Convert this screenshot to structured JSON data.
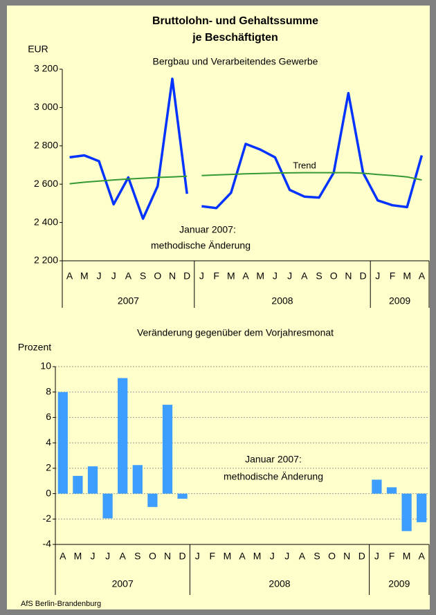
{
  "chart_data": [
    {
      "type": "line",
      "title": [
        "Bruttolohn- und Gehaltssumme",
        "je Beschäftigten"
      ],
      "subtitle": "Bergbau und Verarbeitendes Gewerbe",
      "y_label": "EUR",
      "annotations": [
        "Januar 2007:",
        "methodische Änderung",
        "Trend"
      ],
      "categories": [
        "A",
        "M",
        "J",
        "J",
        "A",
        "S",
        "O",
        "N",
        "D",
        "J",
        "F",
        "M",
        "A",
        "M",
        "J",
        "J",
        "A",
        "S",
        "O",
        "N",
        "D",
        "J",
        "F",
        "M",
        "A"
      ],
      "year_groups": [
        {
          "label": "2007",
          "months": 9
        },
        {
          "label": "2008",
          "months": 12
        },
        {
          "label": "2009",
          "months": 4
        }
      ],
      "series": [
        {
          "color": "#0033ff",
          "width": 3.5,
          "values": [
            2740,
            2750,
            2720,
            2495,
            2635,
            2420,
            2590,
            3150,
            2550,
            null,
            null,
            null,
            null,
            null,
            null,
            null,
            null,
            null,
            null,
            null,
            null,
            null,
            null,
            null,
            null
          ]
        },
        {
          "color": "#0033ff",
          "width": 3.5,
          "values": [
            null,
            null,
            null,
            null,
            null,
            null,
            null,
            null,
            null,
            2485,
            2475,
            2555,
            2810,
            2780,
            2740,
            2570,
            2535,
            2530,
            2660,
            3075,
            2660,
            2515,
            2490,
            2480,
            2750
          ]
        },
        {
          "color": "#339933",
          "width": 2,
          "values": [
            2602,
            2610,
            2616,
            2622,
            2627,
            2631,
            2635,
            2638,
            2641,
            null,
            null,
            null,
            null,
            null,
            null,
            null,
            null,
            null,
            null,
            null,
            null,
            null,
            null,
            null,
            null
          ]
        },
        {
          "color": "#339933",
          "width": 2,
          "values": [
            null,
            null,
            null,
            null,
            null,
            null,
            null,
            null,
            null,
            2645,
            2648,
            2651,
            2654,
            2656,
            2658,
            2659,
            2660,
            2660,
            2660,
            2660,
            2657,
            2650,
            2645,
            2638,
            2622
          ]
        }
      ],
      "ylim": [
        2200,
        3200
      ],
      "yticks": [
        {
          "value": 2200,
          "label": "2 200"
        },
        {
          "value": 2400,
          "label": "2 400"
        },
        {
          "value": 2600,
          "label": "2 600"
        },
        {
          "value": 2800,
          "label": "2 800"
        },
        {
          "value": 3000,
          "label": "3 000"
        },
        {
          "value": 3200,
          "label": "3 200"
        }
      ],
      "grid": false
    },
    {
      "type": "bar",
      "subtitle": "Veränderung gegenüber dem Vorjahresmonat",
      "y_label": "Prozent",
      "annotations": [
        "Januar 2007:",
        "methodische Änderung"
      ],
      "categories": [
        "A",
        "M",
        "J",
        "J",
        "A",
        "S",
        "O",
        "N",
        "D",
        "J",
        "F",
        "M",
        "A",
        "M",
        "J",
        "J",
        "A",
        "S",
        "O",
        "N",
        "D",
        "J",
        "F",
        "M",
        "A"
      ],
      "year_groups": [
        {
          "label": "2007",
          "months": 9
        },
        {
          "label": "2008",
          "months": 12
        },
        {
          "label": "2009",
          "months": 4
        }
      ],
      "values": [
        8.0,
        1.4,
        2.15,
        -1.95,
        9.1,
        2.25,
        -1.05,
        7.0,
        -0.4,
        null,
        null,
        null,
        null,
        null,
        null,
        null,
        null,
        null,
        null,
        null,
        null,
        1.1,
        0.5,
        -2.95,
        -2.25
      ],
      "color": "#3d9eff",
      "ylim": [
        -4,
        10
      ],
      "yticks": [
        -4,
        -2,
        0,
        2,
        4,
        6,
        8,
        10
      ],
      "grid": true
    }
  ],
  "footer": "AfS Berlin-Brandenburg"
}
